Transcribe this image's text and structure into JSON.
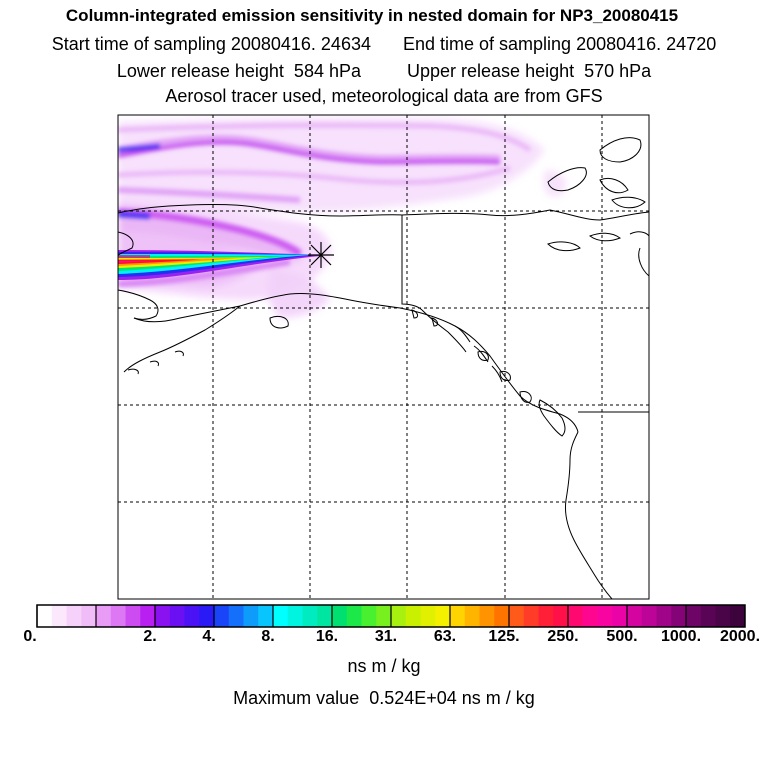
{
  "header": {
    "title": "Column-integrated emission sensitivity in nested domain for NP3_20080415",
    "start_time": "Start time of sampling 20080416. 24634",
    "end_time": "End time of sampling 20080416. 24720",
    "lower_release": "Lower release height  584 hPa",
    "upper_release": "Upper release height  570 hPa",
    "tracer_info": "Aerosol tracer used, meteorological data are from GFS"
  },
  "map": {
    "receptor_marker": "x-marker",
    "plume_colors": {
      "faint": "#f3d6fb",
      "light": "#e9a8f6",
      "magenta": "#cf3df0",
      "violet": "#9a22f0",
      "blue": "#2a2cf2",
      "cyan": "#00f0ff",
      "green": "#00e86a",
      "yellow": "#e8f000",
      "orange": "#ff9a00",
      "red": "#ff1030",
      "pink": "#ff0a96"
    }
  },
  "colorbar": {
    "tick_labels": [
      "0.",
      "2.",
      "4.",
      "8.",
      "16.",
      "31.",
      "63.",
      "125.",
      "250.",
      "500.",
      "1000.",
      "2000."
    ],
    "segment_colors": [
      [
        "#ffffff",
        "#fbe8fd",
        "#f6d2fb",
        "#f0bdf8"
      ],
      [
        "#e89cf6",
        "#dd77f4",
        "#cc4cf2",
        "#b81ff0"
      ],
      [
        "#8a12f0",
        "#6a10f2",
        "#4a12f4",
        "#2a1af6"
      ],
      [
        "#1a44f8",
        "#1470fa",
        "#0e9cfb",
        "#08c6fd"
      ],
      [
        "#00ffff",
        "#00f4e0",
        "#00ecc0",
        "#00e6a0"
      ],
      [
        "#00e070",
        "#1ce84a",
        "#48f030",
        "#78f020"
      ],
      [
        "#a8f010",
        "#c8f000",
        "#e0f000",
        "#f4f000"
      ],
      [
        "#ffd400",
        "#ffb400",
        "#ff9400",
        "#ff7400"
      ],
      [
        "#ff5a1a",
        "#ff3c28",
        "#ff2038",
        "#ff1048"
      ],
      [
        "#ff0870",
        "#ff0690",
        "#f804a0",
        "#ea04a8"
      ],
      [
        "#d404a0",
        "#bc0498",
        "#a00488",
        "#840478"
      ],
      [
        "#6e0466",
        "#5a0456",
        "#4a0448",
        "#3c033c"
      ]
    ],
    "units": "ns m / kg"
  },
  "footer": {
    "max_value": "Maximum value  0.524E+04 ns m / kg"
  }
}
